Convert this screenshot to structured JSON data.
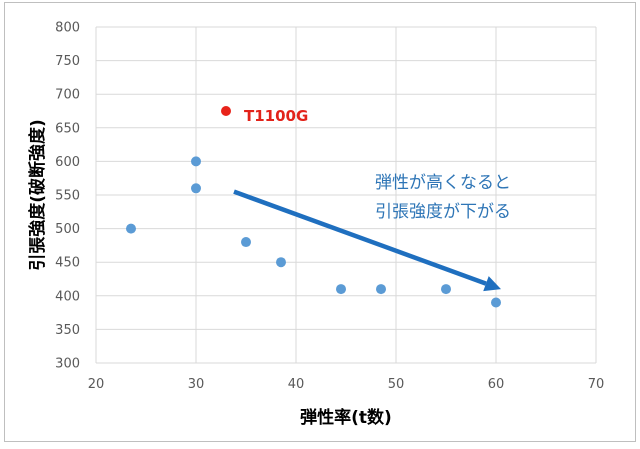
{
  "chart_data": {
    "type": "scatter",
    "xlabel": "弾性率(t数)",
    "ylabel": "引張強度(破断強度)",
    "xlim": [
      20,
      70
    ],
    "ylim": [
      300,
      800
    ],
    "xticks": [
      20,
      30,
      40,
      50,
      60,
      70
    ],
    "yticks": [
      300,
      350,
      400,
      450,
      500,
      550,
      600,
      650,
      700,
      750,
      800
    ],
    "grid": true,
    "points": [
      {
        "x": 23.5,
        "y": 500
      },
      {
        "x": 30,
        "y": 600
      },
      {
        "x": 30,
        "y": 560
      },
      {
        "x": 35,
        "y": 480
      },
      {
        "x": 38.5,
        "y": 450
      },
      {
        "x": 44.5,
        "y": 410
      },
      {
        "x": 48.5,
        "y": 410
      },
      {
        "x": 55,
        "y": 410
      },
      {
        "x": 60,
        "y": 390
      }
    ],
    "highlight": {
      "x": 33,
      "y": 675,
      "label": "T1100G"
    },
    "annotation": {
      "lines": [
        "弾性が高くなると",
        "引張強度が下がる"
      ],
      "arrow_from": {
        "x": 33.8,
        "y": 555
      },
      "arrow_to": {
        "x": 60.5,
        "y": 410
      }
    },
    "colors": {
      "series": "#5b9bd5",
      "highlight": "#e8231a",
      "arrow": "#1f6fbf",
      "annotation": "#2e75b6",
      "grid": "#d9d9d9"
    }
  }
}
